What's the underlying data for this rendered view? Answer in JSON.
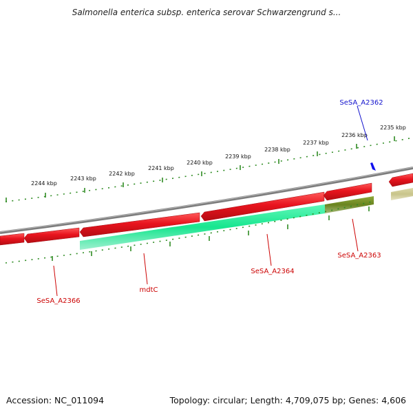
{
  "title": "Salmonella enterica subsp. enterica serovar Schwarzengrund s...",
  "footer": {
    "accession": "Accession: NC_011094",
    "topology": "Topology: circular; Length: 4,709,075 bp; Genes: 4,606"
  },
  "colors": {
    "backbone": "#7a7a7a",
    "gene_forward": "#e8141e",
    "gene_cds": "#17e68f",
    "gene_olive": "#6a8420",
    "gene_tan": "#c8c48a",
    "ticks": "#2e8b22",
    "label_red": "#cc0000",
    "label_blue": "#1010cc",
    "marker_blue": "#1010ee"
  },
  "kbp_labels": [
    "2244 kbp",
    "2243 kbp",
    "2242 kbp",
    "2241 kbp",
    "2240 kbp",
    "2239 kbp",
    "2238 kbp",
    "2237 kbp",
    "2236 kbp",
    "2235 kbp"
  ],
  "gene_labels": {
    "sesa_a2362": "SeSA_A2362",
    "sesa_a2363": "SeSA_A2363",
    "sesa_a2364": "SeSA_A2364",
    "mdtc": "mdtC",
    "sesa_a2366": "SeSA_A2366"
  }
}
